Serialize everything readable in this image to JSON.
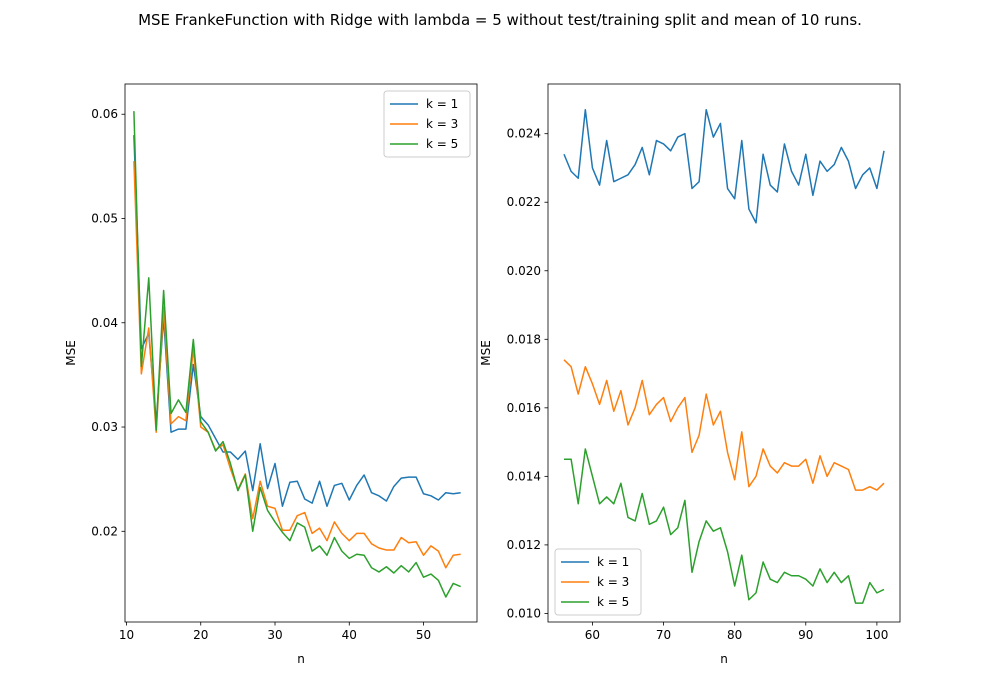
{
  "figure": {
    "title": "MSE FrankeFunction with Ridge with lambda = 5 without test/training split and mean of 10 runs."
  },
  "colors": {
    "k1": "#1f77b4",
    "k3": "#ff7f0e",
    "k5": "#2ca02c"
  },
  "chart_data": [
    {
      "type": "line",
      "xlabel": "n",
      "ylabel": "MSE",
      "xlim": [
        9.8,
        57.2
      ],
      "ylim": [
        0.0113,
        0.0629
      ],
      "xticks": [
        10,
        20,
        30,
        40,
        50
      ],
      "xtick_labels": [
        "10",
        "20",
        "30",
        "40",
        "50"
      ],
      "yticks": [
        0.02,
        0.03,
        0.04,
        0.05,
        0.06
      ],
      "ytick_labels": [
        "0.02",
        "0.03",
        "0.04",
        "0.05",
        "0.06"
      ],
      "legend_position": "top-right",
      "x": [
        11,
        12,
        13,
        14,
        15,
        16,
        17,
        18,
        19,
        20,
        21,
        22,
        23,
        24,
        25,
        26,
        27,
        28,
        29,
        30,
        31,
        32,
        33,
        34,
        35,
        36,
        37,
        38,
        39,
        40,
        41,
        42,
        43,
        44,
        45,
        46,
        47,
        48,
        49,
        50,
        51,
        52,
        53,
        54,
        55
      ],
      "series": [
        {
          "name": "k = 1",
          "color_key": "k1",
          "values": [
            0.058,
            0.0375,
            0.039,
            0.0305,
            0.0405,
            0.0295,
            0.0298,
            0.0298,
            0.036,
            0.031,
            0.0302,
            0.0289,
            0.0276,
            0.0276,
            0.0269,
            0.0277,
            0.0239,
            0.0284,
            0.0241,
            0.0265,
            0.0224,
            0.0247,
            0.0248,
            0.0231,
            0.0227,
            0.0248,
            0.0224,
            0.0244,
            0.0246,
            0.023,
            0.0244,
            0.0254,
            0.0237,
            0.0234,
            0.0229,
            0.0243,
            0.0251,
            0.0252,
            0.0252,
            0.0236,
            0.0234,
            0.023,
            0.0237,
            0.0236,
            0.0237
          ]
        },
        {
          "name": "k = 3",
          "color_key": "k3",
          "values": [
            0.0555,
            0.0351,
            0.0395,
            0.0295,
            0.0415,
            0.0303,
            0.031,
            0.0306,
            0.0375,
            0.03,
            0.0295,
            0.0278,
            0.0283,
            0.026,
            0.024,
            0.0255,
            0.0212,
            0.0248,
            0.0224,
            0.0222,
            0.0201,
            0.0201,
            0.0215,
            0.0218,
            0.0198,
            0.0203,
            0.0191,
            0.0209,
            0.0198,
            0.0191,
            0.0198,
            0.0198,
            0.0188,
            0.0184,
            0.0182,
            0.0182,
            0.0194,
            0.0189,
            0.019,
            0.0177,
            0.0186,
            0.0181,
            0.0165,
            0.0177,
            0.0178
          ]
        },
        {
          "name": "k = 5",
          "color_key": "k5",
          "values": [
            0.0603,
            0.0358,
            0.0443,
            0.0297,
            0.0431,
            0.0313,
            0.0326,
            0.0314,
            0.0384,
            0.0305,
            0.0295,
            0.0277,
            0.0286,
            0.0265,
            0.0239,
            0.0254,
            0.02,
            0.0242,
            0.022,
            0.0209,
            0.0199,
            0.0191,
            0.0208,
            0.0204,
            0.0181,
            0.0186,
            0.0177,
            0.0194,
            0.0181,
            0.0174,
            0.0178,
            0.0177,
            0.0165,
            0.0161,
            0.0166,
            0.016,
            0.0167,
            0.0161,
            0.017,
            0.0156,
            0.0159,
            0.0153,
            0.0137,
            0.015,
            0.0147
          ]
        }
      ]
    },
    {
      "type": "line",
      "xlabel": "n",
      "ylabel": "MSE",
      "xlim": [
        53.75,
        103.25
      ],
      "ylim": [
        0.00975,
        0.02545
      ],
      "xticks": [
        60,
        70,
        80,
        90,
        100
      ],
      "xtick_labels": [
        "60",
        "70",
        "80",
        "90",
        "100"
      ],
      "yticks": [
        0.01,
        0.012,
        0.014,
        0.016,
        0.018,
        0.02,
        0.022,
        0.024
      ],
      "ytick_labels": [
        "0.010",
        "0.012",
        "0.014",
        "0.016",
        "0.018",
        "0.020",
        "0.022",
        "0.024"
      ],
      "legend_position": "bottom-left",
      "x": [
        56,
        57,
        58,
        59,
        60,
        61,
        62,
        63,
        64,
        65,
        66,
        67,
        68,
        69,
        70,
        71,
        72,
        73,
        74,
        75,
        76,
        77,
        78,
        79,
        80,
        81,
        82,
        83,
        84,
        85,
        86,
        87,
        88,
        89,
        90,
        91,
        92,
        93,
        94,
        95,
        96,
        97,
        98,
        99,
        100,
        101
      ],
      "series": [
        {
          "name": "k = 1",
          "color_key": "k1",
          "values": [
            0.0234,
            0.0229,
            0.0227,
            0.0247,
            0.023,
            0.0225,
            0.0238,
            0.0226,
            0.0227,
            0.0228,
            0.0231,
            0.0236,
            0.0228,
            0.0238,
            0.0237,
            0.0235,
            0.0239,
            0.024,
            0.0224,
            0.0226,
            0.0247,
            0.0239,
            0.0243,
            0.0224,
            0.0221,
            0.0238,
            0.0218,
            0.0214,
            0.0234,
            0.0225,
            0.0223,
            0.0237,
            0.0229,
            0.0225,
            0.0234,
            0.0222,
            0.0232,
            0.0229,
            0.0231,
            0.0236,
            0.0232,
            0.0224,
            0.0228,
            0.023,
            0.0224,
            0.0235
          ]
        },
        {
          "name": "k = 3",
          "color_key": "k3",
          "values": [
            0.0174,
            0.0172,
            0.0164,
            0.0172,
            0.0167,
            0.0161,
            0.0168,
            0.0159,
            0.0165,
            0.0155,
            0.016,
            0.0168,
            0.0158,
            0.0161,
            0.0163,
            0.0156,
            0.016,
            0.0163,
            0.0147,
            0.0152,
            0.0164,
            0.0155,
            0.0159,
            0.0147,
            0.0139,
            0.0153,
            0.0137,
            0.014,
            0.0148,
            0.0143,
            0.0141,
            0.0144,
            0.0143,
            0.0143,
            0.0145,
            0.0138,
            0.0146,
            0.014,
            0.0144,
            0.0143,
            0.0142,
            0.0136,
            0.0136,
            0.0137,
            0.0136,
            0.0138
          ]
        },
        {
          "name": "k = 5",
          "color_key": "k5",
          "values": [
            0.0145,
            0.0145,
            0.0132,
            0.0148,
            0.014,
            0.0132,
            0.0134,
            0.0132,
            0.0138,
            0.0128,
            0.0127,
            0.0135,
            0.0126,
            0.0127,
            0.0131,
            0.0123,
            0.0125,
            0.0133,
            0.0112,
            0.0121,
            0.0127,
            0.0124,
            0.0125,
            0.0118,
            0.0108,
            0.0117,
            0.0104,
            0.0106,
            0.0115,
            0.011,
            0.0109,
            0.0112,
            0.0111,
            0.0111,
            0.011,
            0.0108,
            0.0113,
            0.0109,
            0.0112,
            0.0109,
            0.0111,
            0.0103,
            0.0103,
            0.0109,
            0.0106,
            0.0107
          ]
        }
      ]
    }
  ]
}
